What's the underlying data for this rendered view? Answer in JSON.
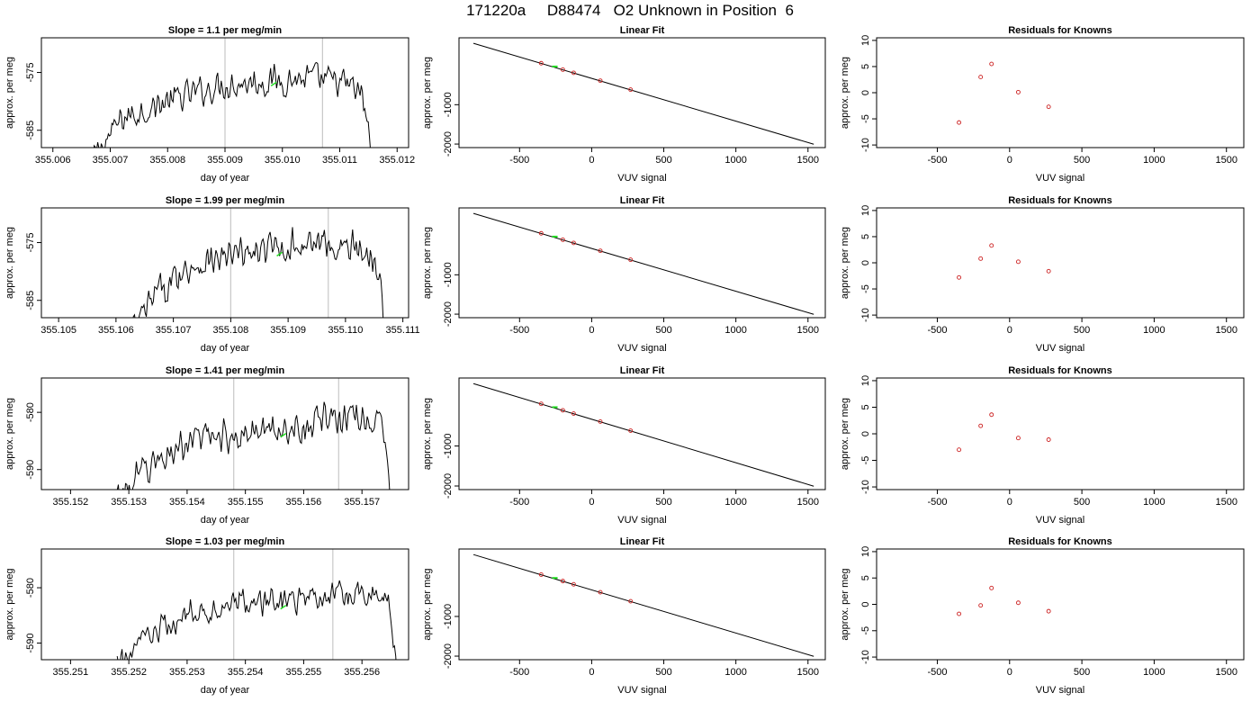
{
  "figure": {
    "title": "171220a     D88474   O2 Unknown in Position  6"
  },
  "colors": {
    "trace": "#000000",
    "marker_green": "#22dd22",
    "residual_red": "#cc2222",
    "cycle_line": "#c8c8c8"
  },
  "chart_data": [
    {
      "panel": "time-series",
      "row": 1,
      "type": "line",
      "title": "Slope =  1.1  per meg/min",
      "xlabel": "day of year",
      "ylabel": "approx. per meg",
      "xlim": [
        355.0058,
        355.0122
      ],
      "ylim": [
        -588,
        -569
      ],
      "xticks": [
        355.006,
        355.007,
        355.008,
        355.009,
        355.01,
        355.011,
        355.012
      ],
      "xtick_labels": [
        "355.006",
        "355.007",
        "355.008",
        "355.009",
        "355.010",
        "355.011",
        "355.012"
      ],
      "yticks": [
        -575,
        -585
      ],
      "ytick_labels": [
        "-575",
        "-585"
      ],
      "vlines": [
        355.009,
        355.0107
      ],
      "x_start": 355.0067,
      "x_end": 355.0116,
      "trend": [
        [
          355.0067,
          -590
        ],
        [
          355.0072,
          -583
        ],
        [
          355.008,
          -580
        ],
        [
          355.009,
          -577
        ],
        [
          355.0098,
          -576.5
        ],
        [
          355.0105,
          -576
        ],
        [
          355.0111,
          -577
        ],
        [
          355.0114,
          -579
        ],
        [
          355.0116,
          -592
        ]
      ],
      "noise": 2.0,
      "n_points": 240,
      "marker": {
        "x": 355.00985,
        "y": -577
      }
    },
    {
      "panel": "linear-fit",
      "row": 1,
      "type": "scatter",
      "title": "Linear Fit",
      "xlabel": "VUV signal",
      "ylabel": "approx. per meg",
      "xlim": [
        -920,
        1620
      ],
      "ylim": [
        -2090,
        700
      ],
      "xticks": [
        -500,
        0,
        500,
        1000,
        1500
      ],
      "xtick_labels": [
        "-500",
        "0",
        "500",
        "1000",
        "1500"
      ],
      "yticks": [
        -1000,
        -2000
      ],
      "ytick_labels": [
        "-1000",
        "-2000"
      ],
      "fit_line": [
        [
          -820,
          560
        ],
        [
          1540,
          -2005
        ]
      ],
      "points": [
        [
          -350,
          54
        ],
        [
          -200,
          -108
        ],
        [
          -125,
          -190
        ],
        [
          60,
          -390
        ],
        [
          270,
          -617
        ]
      ],
      "unknown": {
        "x": -255,
        "y": -30
      }
    },
    {
      "panel": "residuals",
      "row": 1,
      "type": "scatter",
      "title": "Residuals for Knowns",
      "xlabel": "VUV signal",
      "ylabel": "approx. per meg",
      "xlim": [
        -920,
        1620
      ],
      "ylim": [
        -10.5,
        10.5
      ],
      "xticks": [
        -500,
        0,
        500,
        1000,
        1500
      ],
      "xtick_labels": [
        "-500",
        "0",
        "500",
        "1000",
        "1500"
      ],
      "yticks": [
        10,
        5,
        0,
        -5,
        -10
      ],
      "ytick_labels": [
        "10",
        "5",
        "0",
        "-5",
        "-10"
      ],
      "points": [
        [
          -350,
          -5.7
        ],
        [
          -200,
          3.0
        ],
        [
          -125,
          5.5
        ],
        [
          60,
          0.1
        ],
        [
          270,
          -2.7
        ]
      ]
    },
    {
      "panel": "time-series",
      "row": 2,
      "type": "line",
      "title": "Slope =  1.99  per meg/min",
      "xlabel": "day of year",
      "ylabel": "approx. per meg",
      "xlim": [
        355.1047,
        355.1111
      ],
      "ylim": [
        -588,
        -569
      ],
      "xticks": [
        355.105,
        355.106,
        355.107,
        355.108,
        355.109,
        355.11,
        355.111
      ],
      "xtick_labels": [
        "355.105",
        "355.106",
        "355.107",
        "355.108",
        "355.109",
        "355.110",
        "355.111"
      ],
      "yticks": [
        -575,
        -585
      ],
      "ytick_labels": [
        "-575",
        "-585"
      ],
      "vlines": [
        355.108,
        355.1097
      ],
      "x_start": 355.1062,
      "x_end": 355.1107,
      "trend": [
        [
          355.1062,
          -592
        ],
        [
          355.1067,
          -584
        ],
        [
          355.1073,
          -579
        ],
        [
          355.108,
          -577.5
        ],
        [
          355.1088,
          -576
        ],
        [
          355.1095,
          -575
        ],
        [
          355.1102,
          -576
        ],
        [
          355.1106,
          -578.5
        ],
        [
          355.1107,
          -592
        ]
      ],
      "noise": 2.2,
      "n_points": 220,
      "marker": {
        "x": 355.10885,
        "y": -577
      }
    },
    {
      "panel": "linear-fit",
      "row": 2,
      "type": "scatter",
      "title": "Linear Fit",
      "xlabel": "VUV signal",
      "ylabel": "approx. per meg",
      "xlim": [
        -920,
        1620
      ],
      "ylim": [
        -2090,
        700
      ],
      "xticks": [
        -500,
        0,
        500,
        1000,
        1500
      ],
      "xtick_labels": [
        "-500",
        "0",
        "500",
        "1000",
        "1500"
      ],
      "yticks": [
        -1000,
        -2000
      ],
      "ytick_labels": [
        "-1000",
        "-2000"
      ],
      "fit_line": [
        [
          -820,
          560
        ],
        [
          1540,
          -2005
        ]
      ],
      "points": [
        [
          -350,
          54
        ],
        [
          -200,
          -108
        ],
        [
          -125,
          -190
        ],
        [
          60,
          -390
        ],
        [
          270,
          -617
        ]
      ],
      "unknown": {
        "x": -255,
        "y": -30
      }
    },
    {
      "panel": "residuals",
      "row": 2,
      "type": "scatter",
      "title": "Residuals for Knowns",
      "xlabel": "VUV signal",
      "ylabel": "approx. per meg",
      "xlim": [
        -920,
        1620
      ],
      "ylim": [
        -10.5,
        10.5
      ],
      "xticks": [
        -500,
        0,
        500,
        1000,
        1500
      ],
      "xtick_labels": [
        "-500",
        "0",
        "500",
        "1000",
        "1500"
      ],
      "yticks": [
        10,
        5,
        0,
        -5,
        -10
      ],
      "ytick_labels": [
        "10",
        "5",
        "0",
        "-5",
        "-10"
      ],
      "points": [
        [
          -350,
          -2.8
        ],
        [
          -200,
          0.8
        ],
        [
          -125,
          3.3
        ],
        [
          60,
          0.2
        ],
        [
          270,
          -1.6
        ]
      ]
    },
    {
      "panel": "time-series",
      "row": 3,
      "type": "line",
      "title": "Slope =  1.41  per meg/min",
      "xlabel": "day of year",
      "ylabel": "approx. per meg",
      "xlim": [
        355.1515,
        355.1578
      ],
      "ylim": [
        -593.5,
        -574
      ],
      "xticks": [
        355.152,
        355.153,
        355.154,
        355.155,
        355.156,
        355.157
      ],
      "xtick_labels": [
        "355.152",
        "355.153",
        "355.154",
        "355.155",
        "355.156",
        "355.157"
      ],
      "yticks": [
        -580,
        -590
      ],
      "ytick_labels": [
        "-580",
        "-590"
      ],
      "vlines": [
        355.1548,
        355.1566
      ],
      "x_start": 355.1528,
      "x_end": 355.1575,
      "trend": [
        [
          355.1528,
          -595
        ],
        [
          355.1533,
          -590
        ],
        [
          355.154,
          -585
        ],
        [
          355.1548,
          -584
        ],
        [
          355.1556,
          -583
        ],
        [
          355.1563,
          -581.5
        ],
        [
          355.157,
          -580.5
        ],
        [
          355.1574,
          -583
        ],
        [
          355.1575,
          -596
        ]
      ],
      "noise": 2.2,
      "n_points": 230,
      "marker": {
        "x": 355.15565,
        "y": -584
      }
    },
    {
      "panel": "linear-fit",
      "row": 3,
      "type": "scatter",
      "title": "Linear Fit",
      "xlabel": "VUV signal",
      "ylabel": "approx. per meg",
      "xlim": [
        -920,
        1620
      ],
      "ylim": [
        -2090,
        700
      ],
      "xticks": [
        -500,
        0,
        500,
        1000,
        1500
      ],
      "xtick_labels": [
        "-500",
        "0",
        "500",
        "1000",
        "1500"
      ],
      "yticks": [
        -1000,
        -2000
      ],
      "ytick_labels": [
        "-1000",
        "-2000"
      ],
      "fit_line": [
        [
          -820,
          560
        ],
        [
          1540,
          -2005
        ]
      ],
      "points": [
        [
          -350,
          54
        ],
        [
          -200,
          -108
        ],
        [
          -125,
          -190
        ],
        [
          60,
          -390
        ],
        [
          270,
          -617
        ]
      ],
      "unknown": {
        "x": -255,
        "y": -30
      }
    },
    {
      "panel": "residuals",
      "row": 3,
      "type": "scatter",
      "title": "Residuals for Knowns",
      "xlabel": "VUV signal",
      "ylabel": "approx. per meg",
      "xlim": [
        -920,
        1620
      ],
      "ylim": [
        -10.5,
        10.5
      ],
      "xticks": [
        -500,
        0,
        500,
        1000,
        1500
      ],
      "xtick_labels": [
        "-500",
        "0",
        "500",
        "1000",
        "1500"
      ],
      "yticks": [
        10,
        5,
        0,
        -5,
        -10
      ],
      "ytick_labels": [
        "10",
        "5",
        "0",
        "-5",
        "-10"
      ],
      "points": [
        [
          -350,
          -3.0
        ],
        [
          -200,
          1.5
        ],
        [
          -125,
          3.6
        ],
        [
          60,
          -0.8
        ],
        [
          270,
          -1.1
        ]
      ]
    },
    {
      "panel": "time-series",
      "row": 4,
      "type": "line",
      "title": "Slope =  1.03  per meg/min",
      "xlabel": "day of year",
      "ylabel": "approx. per meg",
      "xlim": [
        355.2505,
        355.2568
      ],
      "ylim": [
        -593,
        -573
      ],
      "xticks": [
        355.251,
        355.252,
        355.253,
        355.254,
        355.255,
        355.256
      ],
      "xtick_labels": [
        "355.251",
        "355.252",
        "355.253",
        "355.254",
        "355.255",
        "355.256"
      ],
      "yticks": [
        -580,
        -590
      ],
      "ytick_labels": [
        "-580",
        "-590"
      ],
      "vlines": [
        355.2538,
        355.2555
      ],
      "x_start": 355.2518,
      "x_end": 355.2566,
      "trend": [
        [
          355.2518,
          -594
        ],
        [
          355.2522,
          -590
        ],
        [
          355.253,
          -585
        ],
        [
          355.2538,
          -583
        ],
        [
          355.2546,
          -582.5
        ],
        [
          355.2555,
          -581.5
        ],
        [
          355.2562,
          -580.5
        ],
        [
          355.2565,
          -583
        ],
        [
          355.2566,
          -596
        ]
      ],
      "noise": 2.0,
      "n_points": 230,
      "marker": {
        "x": 355.25465,
        "y": -583.5
      }
    },
    {
      "panel": "linear-fit",
      "row": 4,
      "type": "scatter",
      "title": "Linear Fit",
      "xlabel": "VUV signal",
      "ylabel": "approx. per meg",
      "xlim": [
        -920,
        1620
      ],
      "ylim": [
        -2090,
        700
      ],
      "xticks": [
        -500,
        0,
        500,
        1000,
        1500
      ],
      "xtick_labels": [
        "-500",
        "0",
        "500",
        "1000",
        "1500"
      ],
      "yticks": [
        -1000,
        -2000
      ],
      "ytick_labels": [
        "-1000",
        "-2000"
      ],
      "fit_line": [
        [
          -820,
          560
        ],
        [
          1540,
          -2005
        ]
      ],
      "points": [
        [
          -350,
          54
        ],
        [
          -200,
          -108
        ],
        [
          -125,
          -190
        ],
        [
          60,
          -390
        ],
        [
          270,
          -617
        ]
      ],
      "unknown": {
        "x": -255,
        "y": -30
      }
    },
    {
      "panel": "residuals",
      "row": 4,
      "type": "scatter",
      "title": "Residuals for Knowns",
      "xlabel": "VUV signal",
      "ylabel": "approx. per meg",
      "xlim": [
        -920,
        1620
      ],
      "ylim": [
        -10.5,
        10.5
      ],
      "xticks": [
        -500,
        0,
        500,
        1000,
        1500
      ],
      "xtick_labels": [
        "-500",
        "0",
        "500",
        "1000",
        "1500"
      ],
      "yticks": [
        10,
        5,
        0,
        -5,
        -10
      ],
      "ytick_labels": [
        "10",
        "5",
        "0",
        "-5",
        "-10"
      ],
      "points": [
        [
          -350,
          -1.8
        ],
        [
          -200,
          -0.2
        ],
        [
          -125,
          3.1
        ],
        [
          60,
          0.3
        ],
        [
          270,
          -1.3
        ]
      ]
    }
  ]
}
